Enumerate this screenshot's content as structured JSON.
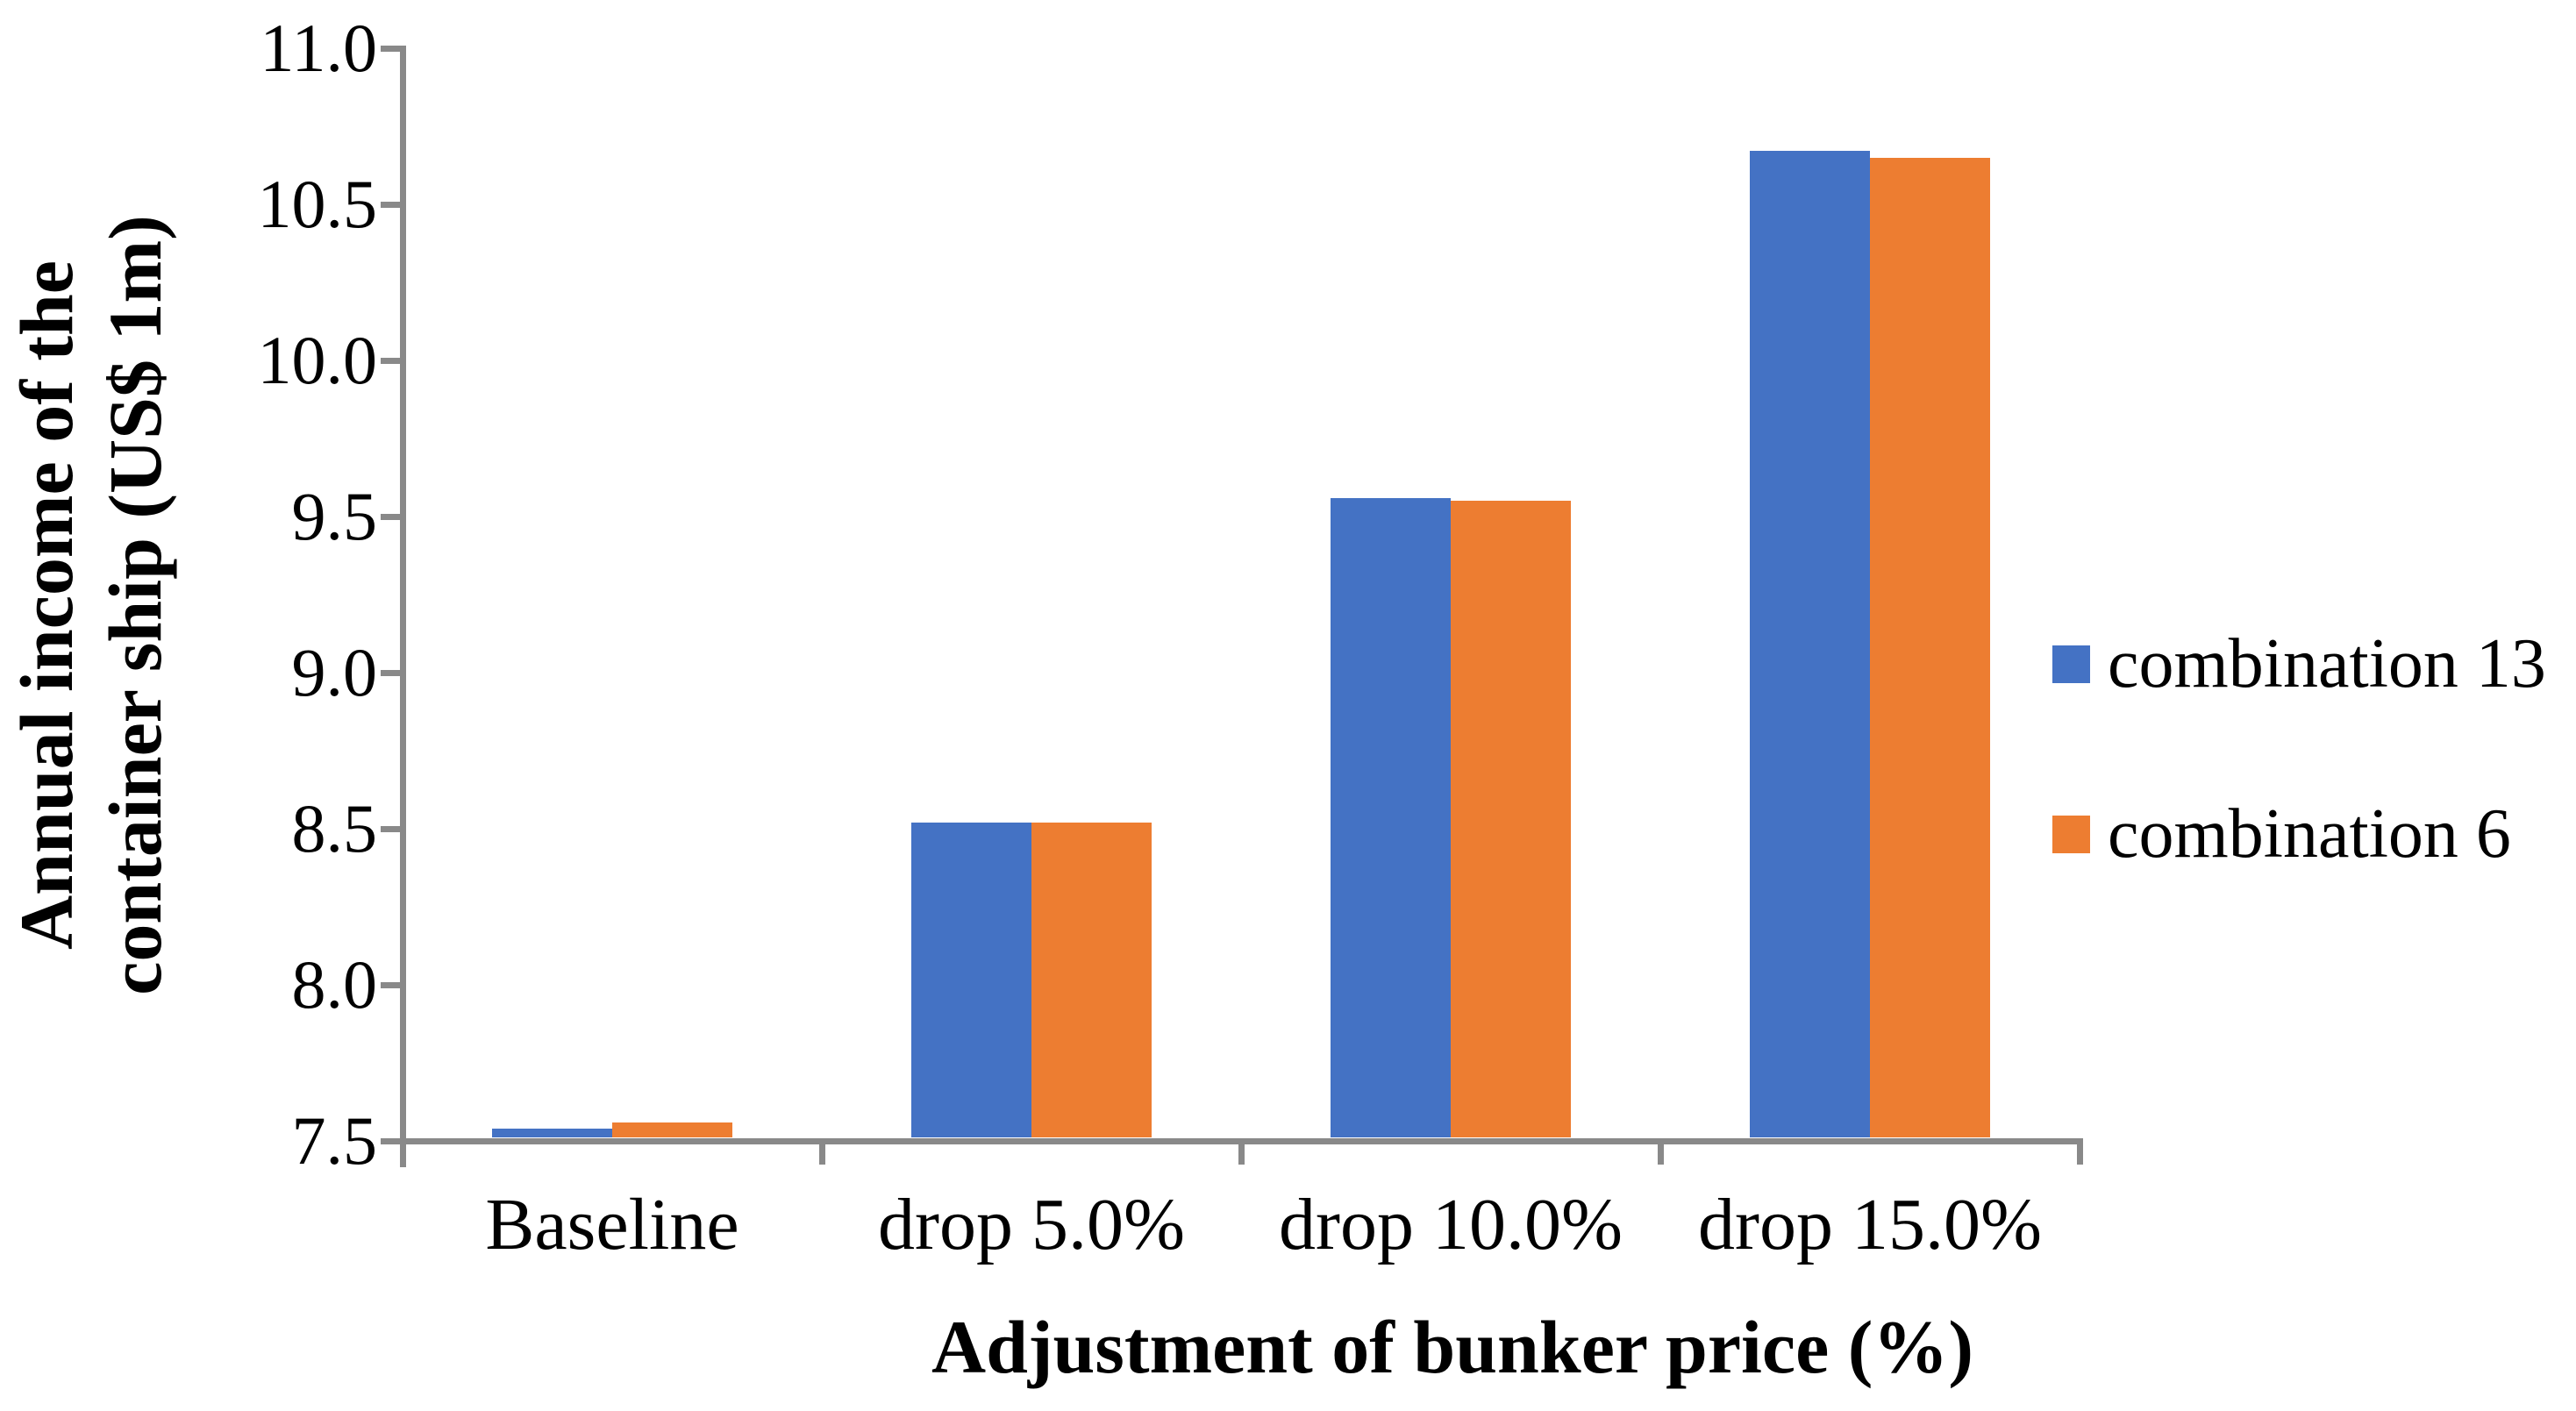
{
  "chart_data": {
    "type": "bar",
    "title": "",
    "xlabel": "Adjustment of bunker price (%)",
    "ylabel": "Annual income of the container ship (US$ 1m)",
    "ylabel_lines": [
      "Annual income of the",
      "container ship (US$ 1m)"
    ],
    "categories": [
      "Baseline",
      "drop 5.0%",
      "drop 10.0%",
      "drop 15.0%"
    ],
    "series": [
      {
        "name": "combination 13",
        "color": "#4472C4",
        "values": [
          7.54,
          8.52,
          9.56,
          10.67
        ]
      },
      {
        "name": "combination 6",
        "color": "#ED7D31",
        "values": [
          7.56,
          8.52,
          9.55,
          10.65
        ]
      }
    ],
    "ylim": [
      7.5,
      11.0
    ],
    "ytick_step": 0.5,
    "ytick_labels": [
      "7.5",
      "8.0",
      "8.5",
      "9.0",
      "9.5",
      "10.0",
      "10.5",
      "11.0"
    ],
    "grid": false,
    "legend_position": "right",
    "axis_color": "#898989",
    "text_color": "#000000",
    "background_color": "#FFFFFF"
  }
}
